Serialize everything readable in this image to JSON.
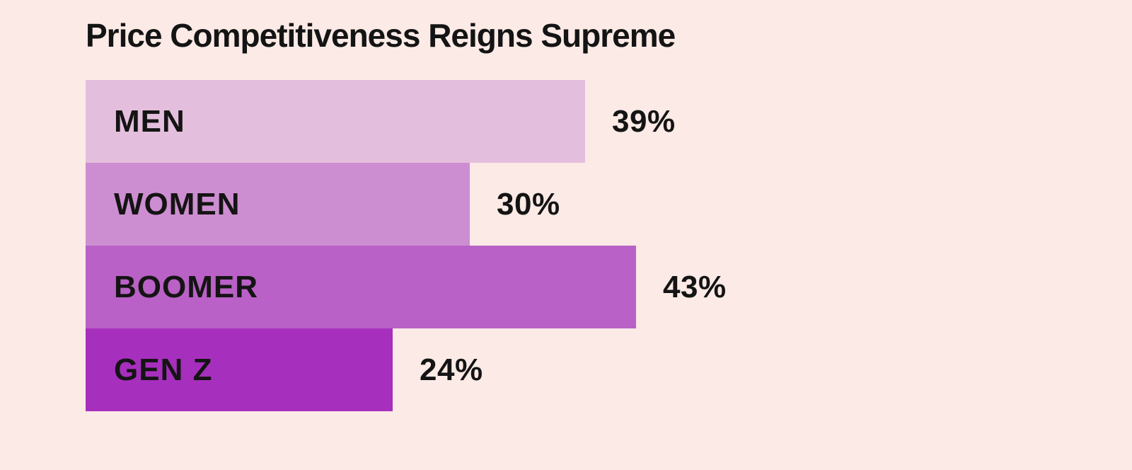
{
  "chart_data": {
    "type": "bar",
    "orientation": "horizontal",
    "title": "Price Competitiveness Reigns Supreme",
    "categories": [
      "MEN",
      "WOMEN",
      "BOOMER",
      "GEN Z"
    ],
    "values": [
      39,
      30,
      43,
      24
    ],
    "value_labels": [
      "39%",
      "30%",
      "43%",
      "24%"
    ],
    "xlabel": "",
    "ylabel": "",
    "xlim": [
      0,
      100
    ],
    "grid": false,
    "legend": "none",
    "axes_visible": false,
    "value_label_position": "outside-right",
    "category_label_position": "inside-left",
    "colors": {
      "background": "#fbeae6",
      "bars": [
        "#e4bfdd",
        "#cd8ed1",
        "#b961c6",
        "#a72fbd"
      ],
      "text": "#141414"
    }
  }
}
